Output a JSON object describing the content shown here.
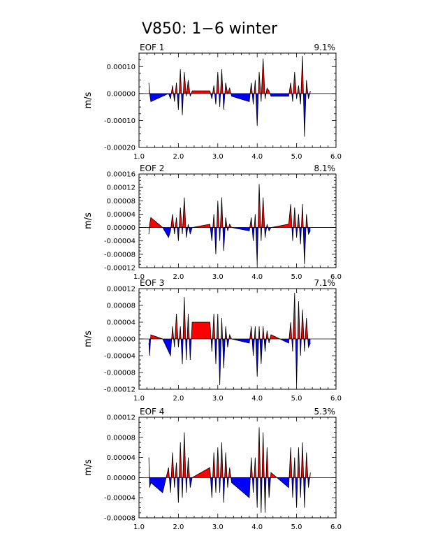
{
  "colors": {
    "positive": "#ff0000",
    "negative": "#0000ff",
    "line": "#000000"
  },
  "chart_data": {
    "type": "area",
    "title": "V850: 1−6 winter",
    "xlim": [
      1.0,
      6.0
    ],
    "x_ticks": [
      "1.0",
      "2.0",
      "3.0",
      "4.0",
      "5.0",
      "6.0"
    ],
    "ylabel": "m/s",
    "panels": [
      {
        "label": "EOF 1",
        "variance": "9.1%",
        "ylim": [
          -0.0002,
          0.00015
        ],
        "y_ticks": [
          "-0.00020",
          "-0.00010",
          "0.00000",
          "0.00010"
        ],
        "y_tick_values": [
          -0.0002,
          -0.0001,
          0.0,
          0.0001
        ],
        "x": [
          1.25,
          1.27,
          1.3,
          1.6,
          1.75,
          1.8,
          1.85,
          1.9,
          1.95,
          2.0,
          2.05,
          2.1,
          2.15,
          2.2,
          2.25,
          2.3,
          2.35,
          2.8,
          2.85,
          2.9,
          2.95,
          3.0,
          3.05,
          3.1,
          3.15,
          3.2,
          3.25,
          3.3,
          3.35,
          3.8,
          3.85,
          3.9,
          3.95,
          4.0,
          4.05,
          4.1,
          4.15,
          4.2,
          4.25,
          4.3,
          4.35,
          4.8,
          4.85,
          4.9,
          4.95,
          5.0,
          5.05,
          5.1,
          5.15,
          5.2,
          5.25,
          5.3,
          5.35
        ],
        "values": [
          4e-05,
          0.0,
          -3e-05,
          -1e-05,
          0.0,
          -2e-05,
          3e-05,
          -3e-05,
          4e-05,
          -6e-05,
          9e-05,
          -8e-05,
          8e-05,
          -1e-05,
          5e-05,
          -1e-05,
          1e-05,
          1e-05,
          -2e-05,
          3e-05,
          -4e-05,
          8e-05,
          -5e-05,
          9e-05,
          -6e-05,
          4e-05,
          0.0,
          2e-05,
          -1e-05,
          -3e-05,
          4e-05,
          -4e-05,
          5e-05,
          -0.00012,
          8e-05,
          -3e-05,
          0.00013,
          -2e-05,
          2e-05,
          1e-05,
          -1e-05,
          -1e-05,
          4e-05,
          -3e-05,
          8e-05,
          -2e-05,
          3e-05,
          -4e-05,
          0.00014,
          -0.00016,
          5e-05,
          -2e-05,
          1e-05
        ]
      },
      {
        "label": "EOF 2",
        "variance": "8.1%",
        "ylim": [
          -0.00012,
          0.00016
        ],
        "y_ticks": [
          "-0.00012",
          "-0.00008",
          "-0.00004",
          "0.00000",
          "0.00004",
          "0.00008",
          "0.00012",
          "0.00016"
        ],
        "y_tick_values": [
          -0.00012,
          -8e-05,
          -4e-05,
          0.0,
          4e-05,
          8e-05,
          0.00012,
          0.00016
        ],
        "x": [
          1.25,
          1.27,
          1.3,
          1.6,
          1.75,
          1.8,
          1.85,
          1.9,
          1.95,
          2.0,
          2.05,
          2.1,
          2.15,
          2.2,
          2.25,
          2.3,
          2.35,
          2.8,
          2.85,
          2.9,
          2.95,
          3.0,
          3.05,
          3.1,
          3.15,
          3.2,
          3.25,
          3.3,
          3.35,
          3.8,
          3.85,
          3.9,
          3.95,
          4.0,
          4.05,
          4.1,
          4.15,
          4.2,
          4.25,
          4.3,
          4.35,
          4.8,
          4.85,
          4.9,
          4.95,
          5.0,
          5.05,
          5.1,
          5.15,
          5.2,
          5.25,
          5.3,
          5.35
        ],
        "values": [
          -2e-05,
          1e-05,
          3e-05,
          0.0,
          -3e-05,
          -1e-05,
          4e-05,
          -2e-05,
          3e-05,
          -4e-05,
          6e-05,
          -2e-05,
          9e-05,
          -3e-05,
          1e-05,
          -2e-05,
          0.0,
          1e-05,
          -4e-05,
          4e-05,
          -8e-05,
          8e-05,
          -4e-05,
          9e-05,
          -7e-05,
          3e-05,
          -1e-05,
          1e-05,
          0.0,
          -1e-05,
          3e-05,
          -4e-05,
          4e-05,
          -0.00011,
          0.00013,
          -4e-05,
          9e-05,
          -3e-05,
          1e-05,
          -1e-05,
          0.0,
          1e-05,
          7e-05,
          -4e-05,
          6e-05,
          -3e-05,
          4e-05,
          -5e-05,
          7e-05,
          -0.00011,
          4e-05,
          -2e-05,
          -1e-05
        ]
      },
      {
        "label": "EOF 3",
        "variance": "7.1%",
        "ylim": [
          -0.00012,
          0.00012
        ],
        "y_ticks": [
          "-0.00012",
          "-0.00008",
          "-0.00004",
          "0.00000",
          "0.00004",
          "0.00008",
          "0.00012"
        ],
        "y_tick_values": [
          -0.00012,
          -8e-05,
          -4e-05,
          0.0,
          4e-05,
          8e-05,
          0.00012
        ],
        "x": [
          1.25,
          1.27,
          1.3,
          1.6,
          1.75,
          1.8,
          1.85,
          1.9,
          1.95,
          2.0,
          2.05,
          2.1,
          2.15,
          2.2,
          2.25,
          2.3,
          2.35,
          2.8,
          2.85,
          2.9,
          2.95,
          3.0,
          3.05,
          3.1,
          3.15,
          3.2,
          3.25,
          3.3,
          3.35,
          3.8,
          3.85,
          3.9,
          3.95,
          4.0,
          4.05,
          4.1,
          4.15,
          4.2,
          4.25,
          4.3,
          4.35,
          4.8,
          4.85,
          4.9,
          4.95,
          5.0,
          5.05,
          5.1,
          5.15,
          5.2,
          5.25,
          5.3,
          5.35
        ],
        "values": [
          -1e-05,
          -4e-05,
          1e-05,
          0.0,
          -3e-05,
          -4e-05,
          3e-05,
          -2e-05,
          6e-05,
          -2e-05,
          3e-05,
          -6e-05,
          0.0001,
          -5e-05,
          6e-05,
          -5e-05,
          4e-05,
          4e-05,
          -3e-05,
          6e-05,
          -6e-05,
          6e-05,
          -0.00011,
          5e-05,
          -7e-05,
          3e-05,
          -2e-05,
          1e-05,
          0.0,
          -1e-05,
          3e-05,
          -4e-05,
          3e-05,
          -9e-05,
          3e-05,
          -6e-05,
          3e-05,
          -3e-05,
          2e-05,
          -1e-05,
          1e-05,
          -1e-05,
          4e-05,
          -3e-05,
          0.00011,
          -0.00011,
          9e-05,
          -4e-05,
          7e-05,
          -3e-05,
          5e-05,
          -2e-05,
          -1e-05
        ]
      },
      {
        "label": "EOF 4",
        "variance": "5.3%",
        "ylim": [
          -8e-05,
          0.00012
        ],
        "y_ticks": [
          "-0.00008",
          "-0.00004",
          "0.00000",
          "0.00004",
          "0.00008",
          "0.00012"
        ],
        "y_tick_values": [
          -8e-05,
          -4e-05,
          0.0,
          4e-05,
          8e-05,
          0.00012
        ],
        "x": [
          1.25,
          1.27,
          1.3,
          1.6,
          1.75,
          1.8,
          1.85,
          1.9,
          1.95,
          2.0,
          2.05,
          2.1,
          2.15,
          2.2,
          2.25,
          2.3,
          2.35,
          2.8,
          2.85,
          2.9,
          2.95,
          3.0,
          3.05,
          3.1,
          3.15,
          3.2,
          3.25,
          3.3,
          3.35,
          3.8,
          3.85,
          3.9,
          3.95,
          4.0,
          4.05,
          4.1,
          4.15,
          4.2,
          4.25,
          4.3,
          4.35,
          4.8,
          4.85,
          4.9,
          4.95,
          5.0,
          5.05,
          5.1,
          5.15,
          5.2,
          5.25,
          5.3,
          5.35
        ],
        "values": [
          4e-05,
          -2e-05,
          -1e-05,
          -3e-05,
          2e-05,
          -3e-05,
          5e-05,
          -2e-05,
          3e-05,
          -5e-05,
          7e-05,
          -4e-05,
          9e-05,
          -3e-05,
          4e-05,
          -2e-05,
          0.0,
          2e-05,
          -4e-05,
          5e-05,
          -3e-05,
          6e-05,
          -3e-05,
          7e-05,
          -5e-05,
          5e-05,
          -2e-05,
          2e-05,
          -1e-05,
          -4e-05,
          4e-05,
          -3e-05,
          4e-05,
          -6e-05,
          0.0001,
          -7e-05,
          9e-05,
          -7e-05,
          6e-05,
          -4e-05,
          1e-05,
          -2e-05,
          6e-05,
          -4e-05,
          4e-05,
          -6e-05,
          6e-05,
          -4e-05,
          7e-05,
          -6e-05,
          5e-05,
          -2e-05,
          1e-05
        ]
      }
    ]
  }
}
